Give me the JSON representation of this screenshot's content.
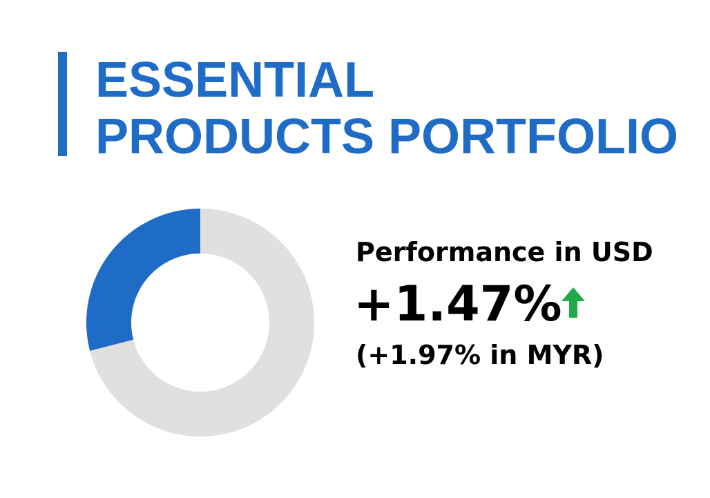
{
  "header": {
    "title_lines": [
      "ESSENTIAL",
      "PRODUCTS PORTFOLIO"
    ]
  },
  "chart_data": {
    "type": "pie",
    "values": [
      29,
      71
    ],
    "colors": [
      "#1f6cc6",
      "#e0e0e0"
    ]
  },
  "performance": {
    "label": "Performance in USD",
    "value": "+1.47%",
    "note": "(+1.97% in MYR)"
  }
}
